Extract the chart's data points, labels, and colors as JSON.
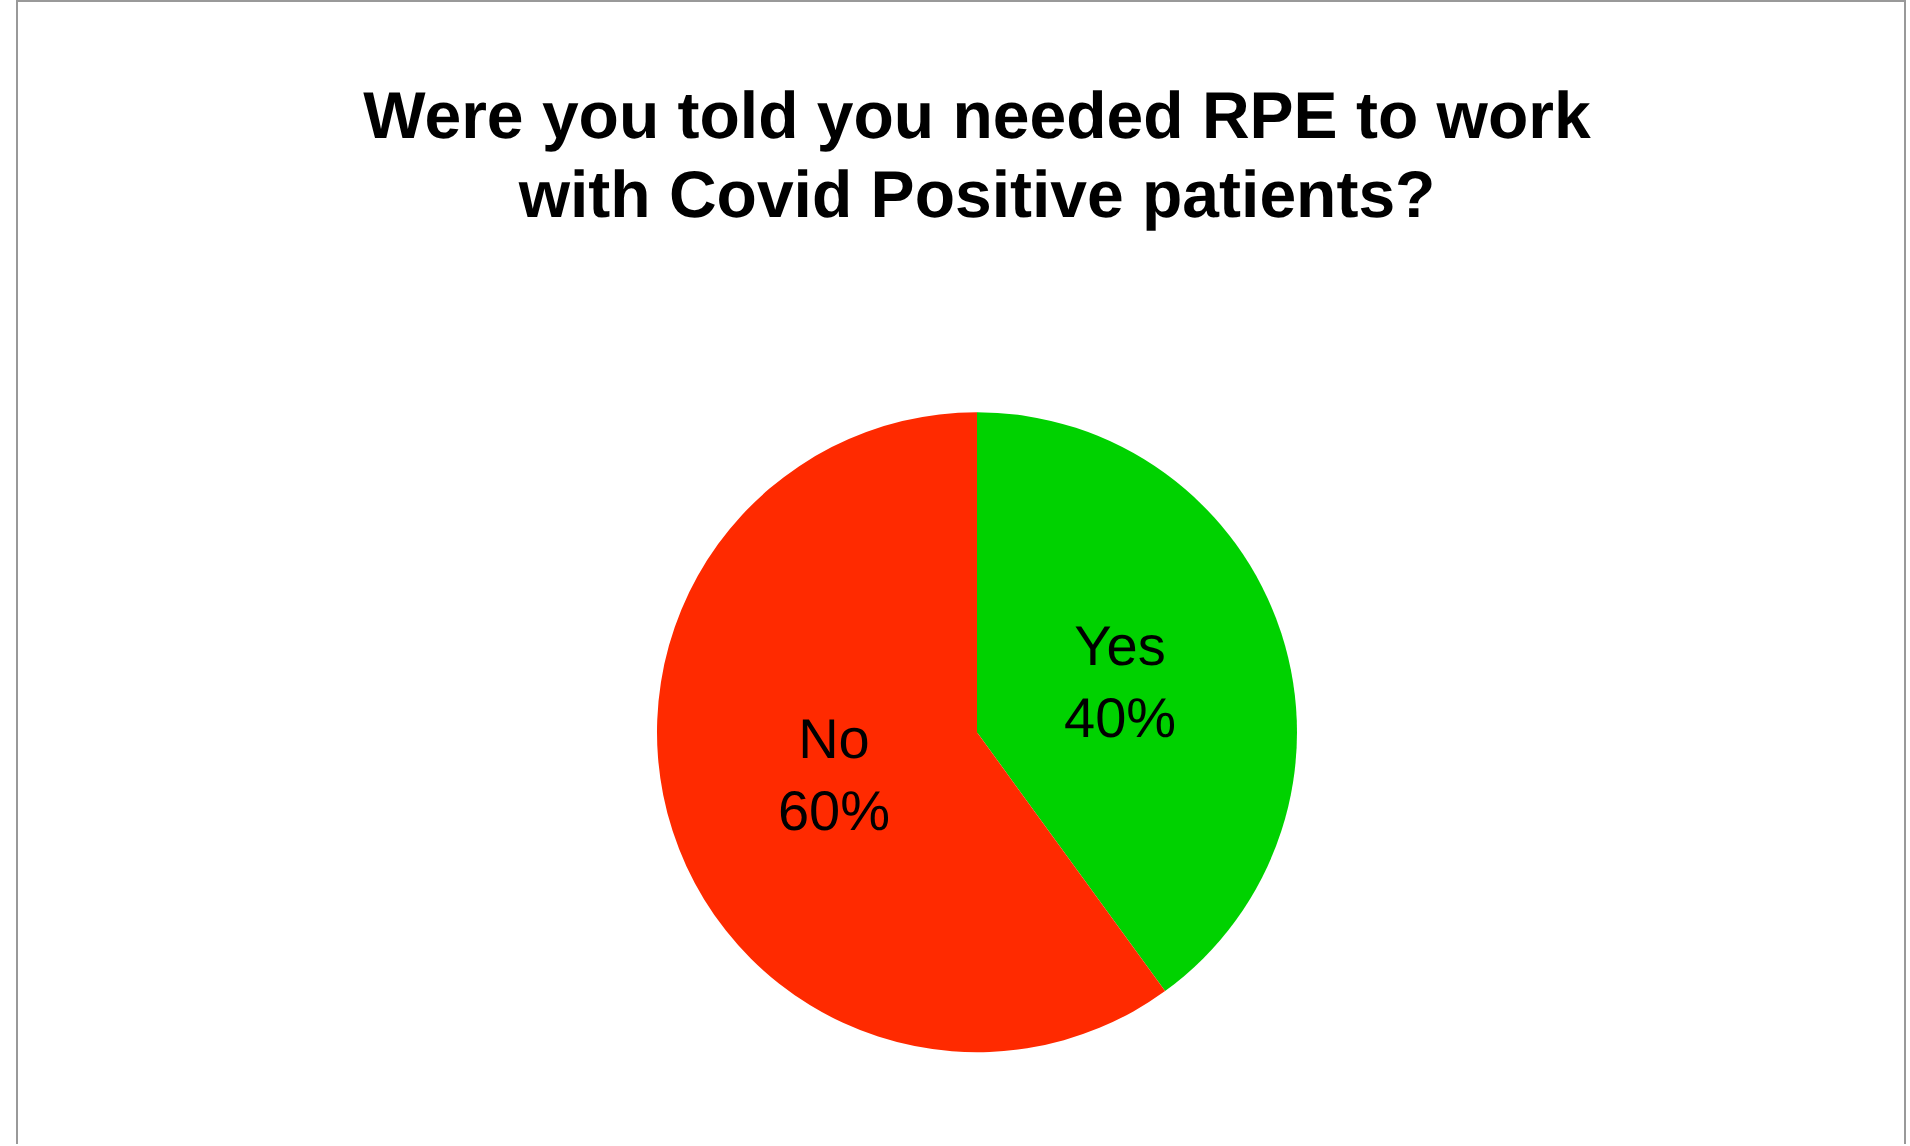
{
  "chart_data": {
    "type": "pie",
    "title": "Were you told you needed RPE to work\nwith Covid Positive patients?",
    "categories": [
      "Yes",
      "No"
    ],
    "values": [
      40,
      60
    ],
    "colors": [
      "#00d200",
      "#ff2a00"
    ],
    "value_labels": [
      "40%",
      "60%"
    ],
    "legend": false
  }
}
